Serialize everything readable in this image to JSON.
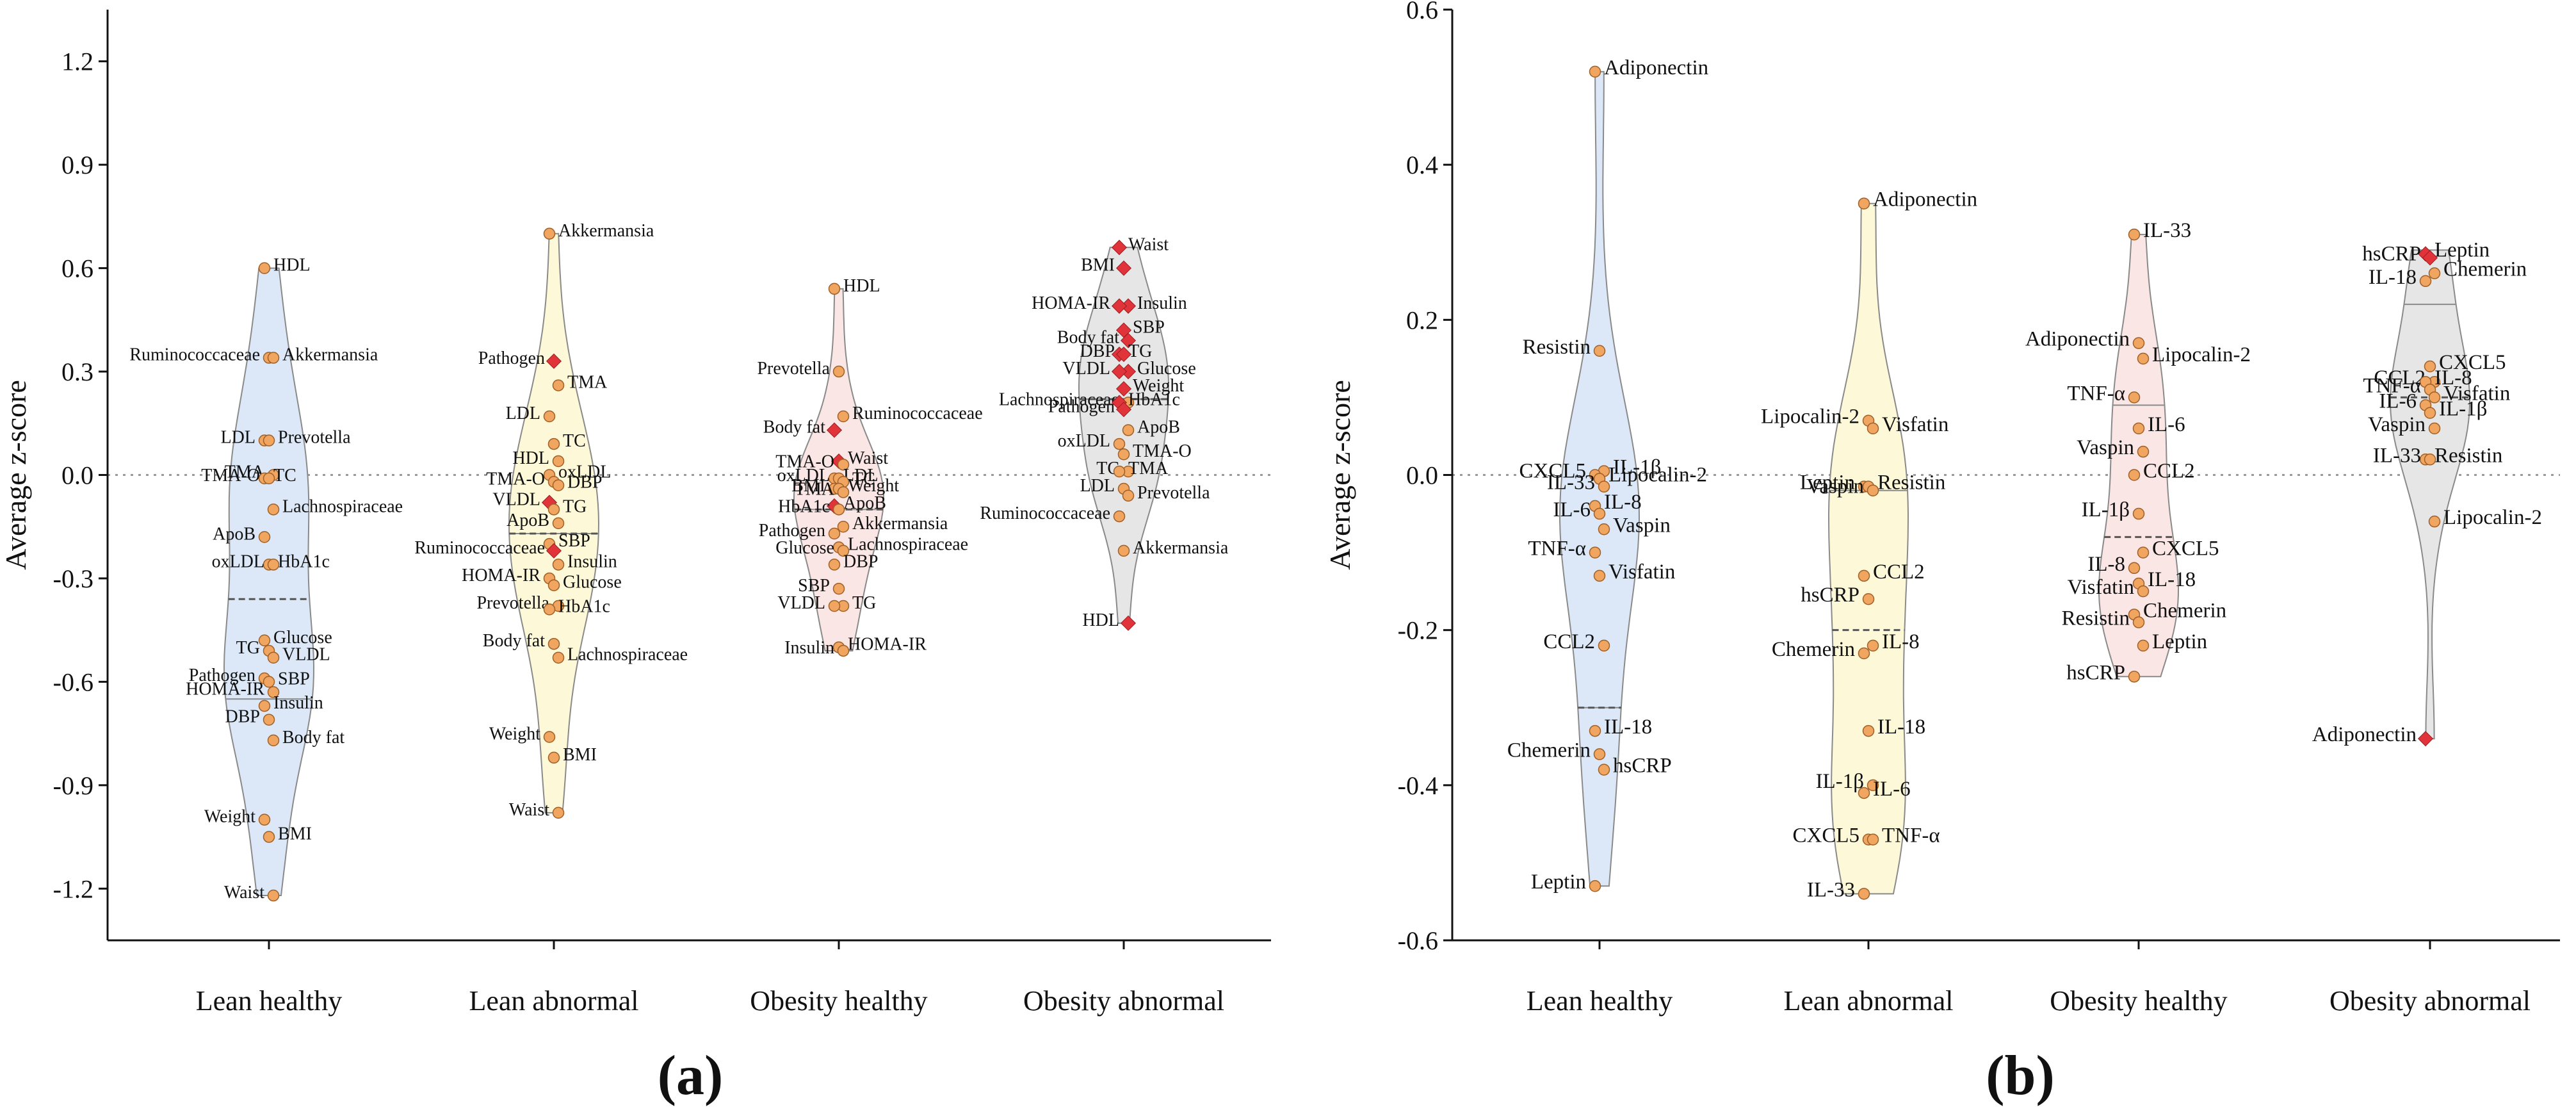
{
  "chart_data": [
    {
      "type": "violin",
      "panel_label": "(a)",
      "ylabel": "Average z-score",
      "ylim": [
        -1.35,
        1.35
      ],
      "yticks": [
        "1.2",
        "0.9",
        "0.6",
        "0.3",
        "0.0",
        "-0.3",
        "-0.6",
        "-0.9",
        "-1.2"
      ],
      "reference_line": 0.0,
      "categories": [
        "Lean healthy",
        "Lean abnormal",
        "Obesity healthy",
        "Obesity abnormal"
      ],
      "colors": {
        "Lean healthy": "#dce8f7",
        "Lean abnormal": "#fdf9d8",
        "Obesity healthy": "#fbe6e6",
        "Obesity abnormal": "#e6e6e6",
        "point": "#f0a560",
        "highlight": "#e0343a"
      },
      "groups": [
        {
          "category": "Lean healthy",
          "min": -1.22,
          "max": 0.6,
          "mean": -0.36,
          "median": -0.65,
          "points": [
            {
              "label": "HDL",
              "value": 0.6
            },
            {
              "label": "Ruminococcaceae",
              "value": 0.34
            },
            {
              "label": "Akkermansia",
              "value": 0.34
            },
            {
              "label": "LDL",
              "value": 0.1
            },
            {
              "label": "Prevotella",
              "value": 0.1
            },
            {
              "label": "TMA",
              "value": 0.0
            },
            {
              "label": "TC",
              "value": -0.01
            },
            {
              "label": "TMA-O",
              "value": -0.01
            },
            {
              "label": "Lachnospiraceae",
              "value": -0.1
            },
            {
              "label": "ApoB",
              "value": -0.18
            },
            {
              "label": "HbA1c",
              "value": -0.26
            },
            {
              "label": "oxLDL",
              "value": -0.26
            },
            {
              "label": "Glucose",
              "value": -0.48
            },
            {
              "label": "TG",
              "value": -0.51
            },
            {
              "label": "VLDL",
              "value": -0.53
            },
            {
              "label": "Pathogen",
              "value": -0.59
            },
            {
              "label": "SBP",
              "value": -0.6
            },
            {
              "label": "HOMA-IR",
              "value": -0.63
            },
            {
              "label": "Insulin",
              "value": -0.67
            },
            {
              "label": "DBP",
              "value": -0.71
            },
            {
              "label": "Body fat",
              "value": -0.77
            },
            {
              "label": "Weight",
              "value": -1.0
            },
            {
              "label": "BMI",
              "value": -1.05
            },
            {
              "label": "Waist",
              "value": -1.22
            }
          ]
        },
        {
          "category": "Lean abnormal",
          "min": -0.98,
          "max": 0.7,
          "mean": -0.17,
          "median": -0.17,
          "points": [
            {
              "label": "Akkermansia",
              "value": 0.7
            },
            {
              "label": "Pathogen",
              "value": 0.33,
              "highlight": true
            },
            {
              "label": "TMA",
              "value": 0.26
            },
            {
              "label": "LDL",
              "value": 0.17
            },
            {
              "label": "TC",
              "value": 0.09
            },
            {
              "label": "HDL",
              "value": 0.04
            },
            {
              "label": "oxLDL",
              "value": 0.0
            },
            {
              "label": "TMA-O",
              "value": -0.02
            },
            {
              "label": "DBP",
              "value": -0.03
            },
            {
              "label": "TG",
              "value": -0.1
            },
            {
              "label": "VLDL",
              "value": -0.08,
              "highlight": true
            },
            {
              "label": "ApoB",
              "value": -0.14
            },
            {
              "label": "SBP",
              "value": -0.2
            },
            {
              "label": "Insulin",
              "value": -0.26
            },
            {
              "label": "Ruminococcaceae",
              "value": -0.22,
              "highlight": true
            },
            {
              "label": "HOMA-IR",
              "value": -0.3
            },
            {
              "label": "Glucose",
              "value": -0.32
            },
            {
              "label": "HbA1c",
              "value": -0.39
            },
            {
              "label": "Prevotella",
              "value": -0.38
            },
            {
              "label": "Body fat",
              "value": -0.49
            },
            {
              "label": "Lachnospiraceae",
              "value": -0.53
            },
            {
              "label": "Weight",
              "value": -0.76
            },
            {
              "label": "BMI",
              "value": -0.82
            },
            {
              "label": "Waist",
              "value": -0.98
            }
          ]
        },
        {
          "category": "Obesity healthy",
          "min": -0.51,
          "max": 0.54,
          "mean": -0.1,
          "median": -0.1,
          "points": [
            {
              "label": "HDL",
              "value": 0.54
            },
            {
              "label": "Prevotella",
              "value": 0.3
            },
            {
              "label": "Ruminococcaceae",
              "value": 0.17
            },
            {
              "label": "Body fat",
              "value": 0.13,
              "highlight": true
            },
            {
              "label": "Waist",
              "value": 0.04,
              "highlight": true
            },
            {
              "label": "TMA-O",
              "value": 0.03
            },
            {
              "label": "LDL",
              "value": -0.01
            },
            {
              "label": "oxLDL",
              "value": -0.01
            },
            {
              "label": "TC",
              "value": -0.02
            },
            {
              "label": "BMI",
              "value": -0.04
            },
            {
              "label": "Weight",
              "value": -0.04
            },
            {
              "label": "TMA",
              "value": -0.05
            },
            {
              "label": "HbA1c",
              "value": -0.1
            },
            {
              "label": "ApoB",
              "value": -0.09,
              "highlight": true
            },
            {
              "label": "Akkermansia",
              "value": -0.15
            },
            {
              "label": "Pathogen",
              "value": -0.17
            },
            {
              "label": "Lachnospiraceae",
              "value": -0.21
            },
            {
              "label": "Glucose",
              "value": -0.22
            },
            {
              "label": "DBP",
              "value": -0.26
            },
            {
              "label": "SBP",
              "value": -0.33
            },
            {
              "label": "TG",
              "value": -0.38
            },
            {
              "label": "VLDL",
              "value": -0.38
            },
            {
              "label": "HOMA-IR",
              "value": -0.5
            },
            {
              "label": "Insulin",
              "value": -0.51
            }
          ]
        },
        {
          "category": "Obesity abnormal",
          "min": -0.43,
          "max": 0.66,
          "mean": 0.22,
          "median": 0.22,
          "points": [
            {
              "label": "Waist",
              "value": 0.66,
              "highlight": true
            },
            {
              "label": "BMI",
              "value": 0.6,
              "highlight": true
            },
            {
              "label": "Insulin",
              "value": 0.49,
              "highlight": true
            },
            {
              "label": "HOMA-IR",
              "value": 0.49,
              "highlight": true
            },
            {
              "label": "SBP",
              "value": 0.42,
              "highlight": true
            },
            {
              "label": "Body fat",
              "value": 0.39,
              "highlight": true
            },
            {
              "label": "TG",
              "value": 0.35,
              "highlight": true
            },
            {
              "label": "DBP",
              "value": 0.35,
              "highlight": true
            },
            {
              "label": "Glucose",
              "value": 0.3,
              "highlight": true
            },
            {
              "label": "VLDL",
              "value": 0.3,
              "highlight": true
            },
            {
              "label": "Weight",
              "value": 0.25,
              "highlight": true
            },
            {
              "label": "Lachnospiraceae",
              "value": 0.21
            },
            {
              "label": "HbA1c",
              "value": 0.21,
              "highlight": true
            },
            {
              "label": "Pathogen",
              "value": 0.19,
              "highlight": true
            },
            {
              "label": "ApoB",
              "value": 0.13
            },
            {
              "label": "oxLDL",
              "value": 0.09
            },
            {
              "label": "TMA-O",
              "value": 0.06
            },
            {
              "label": "TC",
              "value": 0.01
            },
            {
              "label": "TMA",
              "value": 0.01
            },
            {
              "label": "LDL",
              "value": -0.04
            },
            {
              "label": "Prevotella",
              "value": -0.06
            },
            {
              "label": "Ruminococcaceae",
              "value": -0.12
            },
            {
              "label": "Akkermansia",
              "value": -0.22
            },
            {
              "label": "HDL",
              "value": -0.43,
              "highlight": true
            }
          ]
        }
      ]
    },
    {
      "type": "violin",
      "panel_label": "(b)",
      "ylabel": "Average z-score",
      "ylim": [
        -0.6,
        0.6
      ],
      "yticks": [
        "0.6",
        "0.4",
        "0.2",
        "0.0",
        "-0.2",
        "-0.4",
        "-0.6"
      ],
      "reference_line": 0.0,
      "categories": [
        "Lean  healthy",
        "Lean abnormal",
        "Obesity healthy",
        "Obesity abnormal"
      ],
      "colors": {
        "Lean  healthy": "#dce8f7",
        "Lean abnormal": "#fdf9d8",
        "Obesity healthy": "#fbe6e6",
        "Obesity abnormal": "#e6e6e6",
        "point": "#f0a560",
        "highlight": "#e0343a"
      },
      "groups": [
        {
          "category": "Lean  healthy",
          "min": -0.53,
          "max": 0.52,
          "mean": -0.3,
          "median": -0.3,
          "points": [
            {
              "label": "Adiponectin",
              "value": 0.52
            },
            {
              "label": "Resistin",
              "value": 0.16
            },
            {
              "label": "CXCL5",
              "value": 0.0
            },
            {
              "label": "IL-1β",
              "value": 0.005
            },
            {
              "label": "Lipocalin-2",
              "value": -0.005
            },
            {
              "label": "IL-33",
              "value": -0.015
            },
            {
              "label": "IL-8",
              "value": -0.04
            },
            {
              "label": "IL-6",
              "value": -0.05
            },
            {
              "label": "Vaspin",
              "value": -0.07
            },
            {
              "label": "TNF-α",
              "value": -0.1
            },
            {
              "label": "Visfatin",
              "value": -0.13
            },
            {
              "label": "CCL2",
              "value": -0.22
            },
            {
              "label": "IL-18",
              "value": -0.33
            },
            {
              "label": "Chemerin",
              "value": -0.36
            },
            {
              "label": "hsCRP",
              "value": -0.38
            },
            {
              "label": "Leptin",
              "value": -0.53
            }
          ]
        },
        {
          "category": "Lean abnormal",
          "min": -0.54,
          "max": 0.35,
          "mean": -0.2,
          "median": -0.02,
          "points": [
            {
              "label": "Adiponectin",
              "value": 0.35
            },
            {
              "label": "Lipocalin-2",
              "value": 0.07
            },
            {
              "label": "Visfatin",
              "value": 0.06
            },
            {
              "label": "Leptin",
              "value": -0.015
            },
            {
              "label": "Vaspin",
              "value": -0.02
            },
            {
              "label": "Resistin",
              "value": -0.015
            },
            {
              "label": "CCL2",
              "value": -0.13
            },
            {
              "label": "hsCRP",
              "value": -0.16
            },
            {
              "label": "Chemerin",
              "value": -0.23
            },
            {
              "label": "IL-8",
              "value": -0.22
            },
            {
              "label": "IL-18",
              "value": -0.33
            },
            {
              "label": "IL-6",
              "value": -0.41
            },
            {
              "label": "IL-1β",
              "value": -0.4
            },
            {
              "label": "CXCL5",
              "value": -0.47
            },
            {
              "label": "TNF-α",
              "value": -0.47
            },
            {
              "label": "IL-33",
              "value": -0.54
            }
          ]
        },
        {
          "category": "Obesity healthy",
          "min": -0.26,
          "max": 0.31,
          "mean": -0.08,
          "median": 0.09,
          "points": [
            {
              "label": "IL-33",
              "value": 0.31
            },
            {
              "label": "Adiponectin",
              "value": 0.17
            },
            {
              "label": "Lipocalin-2",
              "value": 0.15
            },
            {
              "label": "TNF-α",
              "value": 0.1
            },
            {
              "label": "IL-6",
              "value": 0.06
            },
            {
              "label": "Vaspin",
              "value": 0.03
            },
            {
              "label": "CCL2",
              "value": 0.0
            },
            {
              "label": "IL-1β",
              "value": -0.05
            },
            {
              "label": "CXCL5",
              "value": -0.1
            },
            {
              "label": "IL-8",
              "value": -0.12
            },
            {
              "label": "IL-18",
              "value": -0.14
            },
            {
              "label": "Visfatin",
              "value": -0.15
            },
            {
              "label": "Chemerin",
              "value": -0.18
            },
            {
              "label": "Resistin",
              "value": -0.19
            },
            {
              "label": "Leptin",
              "value": -0.22
            },
            {
              "label": "hsCRP",
              "value": -0.26
            }
          ]
        },
        {
          "category": "Obesity abnormal",
          "min": -0.34,
          "max": 0.29,
          "mean": 0.1,
          "median": 0.22,
          "points": [
            {
              "label": "hsCRP",
              "value": 0.28,
              "highlight": true
            },
            {
              "label": "Leptin",
              "value": 0.285,
              "highlight": true
            },
            {
              "label": "IL-18",
              "value": 0.25
            },
            {
              "label": "Chemerin",
              "value": 0.26
            },
            {
              "label": "CXCL5",
              "value": 0.14
            },
            {
              "label": "CCL2",
              "value": 0.12
            },
            {
              "label": "IL-8",
              "value": 0.12
            },
            {
              "label": "TNF-α",
              "value": 0.11
            },
            {
              "label": "Visfatin",
              "value": 0.1
            },
            {
              "label": "IL-6",
              "value": 0.09
            },
            {
              "label": "IL-1β",
              "value": 0.08
            },
            {
              "label": "Vaspin",
              "value": 0.06
            },
            {
              "label": "Resistin",
              "value": 0.02
            },
            {
              "label": "IL-33",
              "value": 0.02
            },
            {
              "label": "Lipocalin-2",
              "value": -0.06
            },
            {
              "label": "Adiponectin",
              "value": -0.34,
              "highlight": true
            }
          ]
        }
      ]
    }
  ]
}
